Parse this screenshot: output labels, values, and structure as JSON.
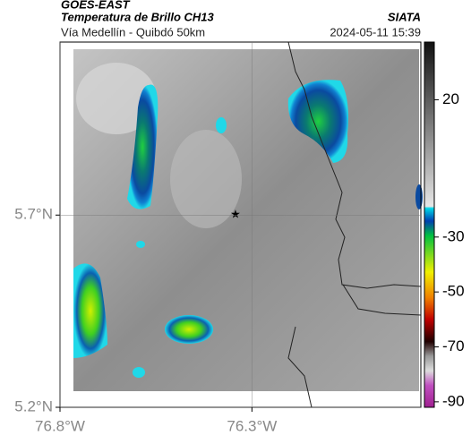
{
  "header": {
    "source": "GOES-EAST",
    "title": "Temperatura de Brillo CH13",
    "brand": "SIATA",
    "subtitle": "Vía Medellín - Quibdó 50km",
    "timestamp": "2024-05-11 15:39"
  },
  "map": {
    "latlim": [
      5.2,
      6.15
    ],
    "lonlim": [
      -76.8,
      -75.86
    ],
    "lat_ticks": [
      {
        "value": 5.2,
        "label": "5.2°N"
      },
      {
        "value": 5.7,
        "label": "5.7°N"
      }
    ],
    "lon_ticks": [
      {
        "value": -76.8,
        "label": "76.8°W"
      },
      {
        "value": -76.3,
        "label": "76.3°W"
      }
    ],
    "colorbar": {
      "clim": [
        -92,
        41
      ],
      "ticks": [
        20,
        -30,
        -50,
        -70,
        -90
      ]
    }
  }
}
